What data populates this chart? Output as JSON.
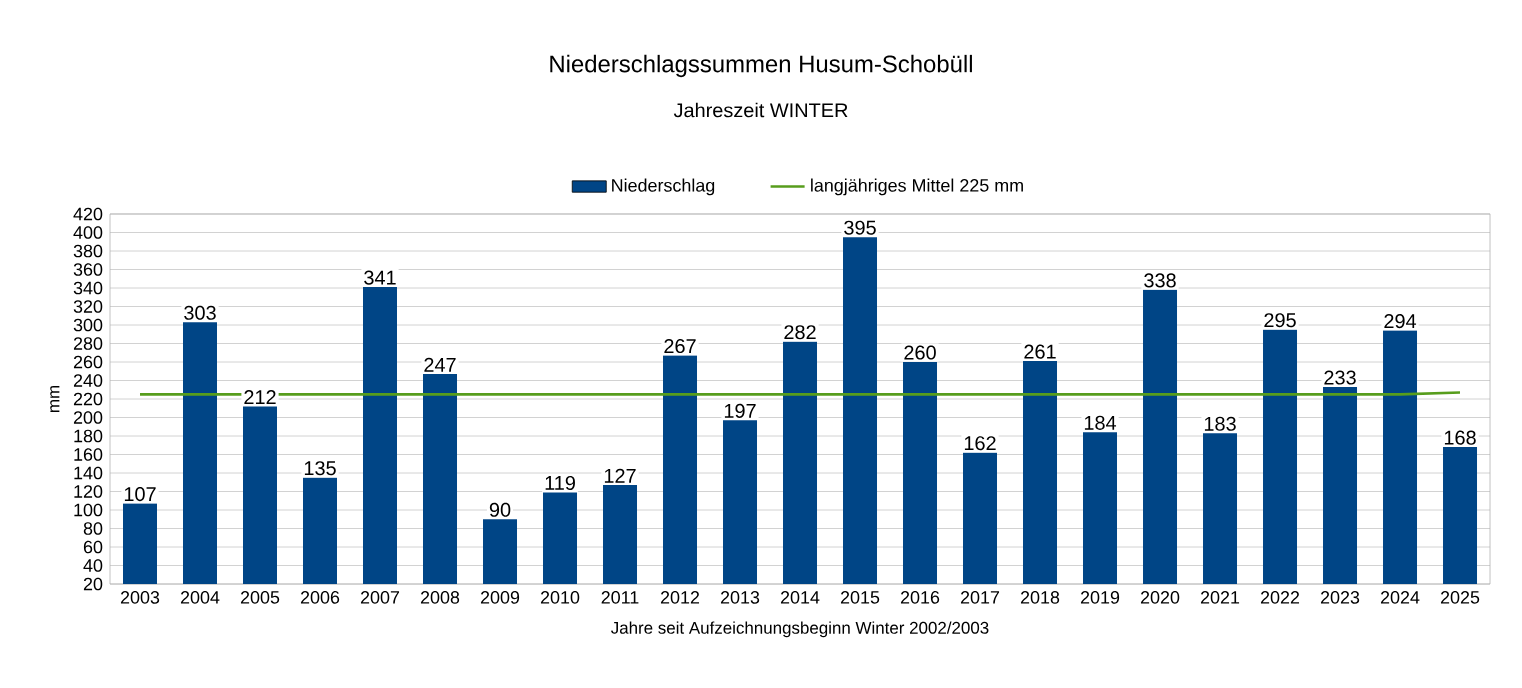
{
  "chart_data": {
    "type": "bar",
    "title": "Niederschlagssummen Husum-Schobüll",
    "subtitle": "Jahreszeit  WINTER",
    "xlabel": "Jahre seit Aufzeichnungsbeginn  Winter 2002/2003",
    "ylabel": "mm",
    "categories": [
      "2003",
      "2004",
      "2005",
      "2006",
      "2007",
      "2008",
      "2009",
      "2010",
      "2011",
      "2012",
      "2013",
      "2014",
      "2015",
      "2016",
      "2017",
      "2018",
      "2019",
      "2020",
      "2021",
      "2022",
      "2023",
      "2024",
      "2025"
    ],
    "series": [
      {
        "name": "Niederschlag",
        "color": "#004586",
        "values": [
          107,
          303,
          212,
          135,
          341,
          247,
          90,
          119,
          127,
          267,
          197,
          282,
          395,
          260,
          162,
          261,
          184,
          338,
          183,
          295,
          233,
          294,
          168
        ],
        "value_labels": [
          "107",
          "303",
          "212",
          "135",
          "341",
          "247",
          "90",
          "119",
          "127",
          "267",
          "197",
          "282",
          "395",
          "260",
          "162",
          "261",
          "184",
          "338",
          "183",
          "295",
          "233",
          "294",
          "168"
        ]
      },
      {
        "name": "langjähriges Mittel 225 mm",
        "type": "line",
        "color": "#579d1c",
        "values": [
          225,
          225,
          225,
          225,
          225,
          225,
          225,
          225,
          225,
          225,
          225,
          225,
          225,
          225,
          225,
          225,
          225,
          225,
          225,
          225,
          225,
          225,
          227
        ]
      }
    ],
    "ylim": [
      20,
      420
    ],
    "yticks": [
      20,
      40,
      60,
      80,
      100,
      120,
      140,
      160,
      180,
      200,
      220,
      240,
      260,
      280,
      300,
      320,
      340,
      360,
      380,
      400,
      420
    ],
    "grid": "y",
    "legend": "top"
  }
}
